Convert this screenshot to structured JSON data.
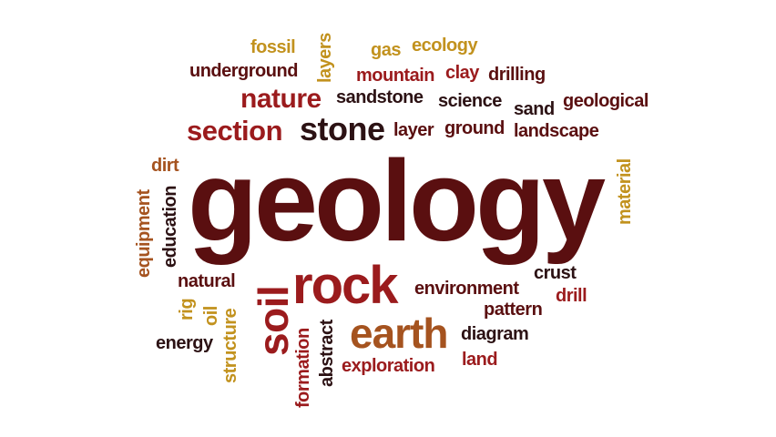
{
  "colors": {
    "dark_brown": "#5a0f10",
    "deep_red": "#9b1b1d",
    "gold": "#c2921e",
    "orange_brown": "#a5531f",
    "dark": "#2c1214",
    "background": "#ffffff"
  },
  "words": {
    "geology": "geology",
    "fossil": "fossil",
    "layers": "layers",
    "gas": "gas",
    "ecology": "ecology",
    "underground": "underground",
    "mountain": "mountain",
    "clay": "clay",
    "drilling": "drilling",
    "nature": "nature",
    "sandstone": "sandstone",
    "science": "science",
    "sand": "sand",
    "geological": "geological",
    "section": "section",
    "stone": "stone",
    "layer": "layer",
    "ground": "ground",
    "landscape": "landscape",
    "dirt": "dirt",
    "equipment": "equipment",
    "education": "education",
    "material": "material",
    "natural": "natural",
    "soil": "soil",
    "rock": "rock",
    "environment": "environment",
    "crust": "crust",
    "drill": "drill",
    "rig": "rig",
    "oil": "oil",
    "structure": "structure",
    "pattern": "pattern",
    "energy": "energy",
    "abstract": "abstract",
    "formation": "formation",
    "earth": "earth",
    "diagram": "diagram",
    "exploration": "exploration",
    "land": "land"
  }
}
